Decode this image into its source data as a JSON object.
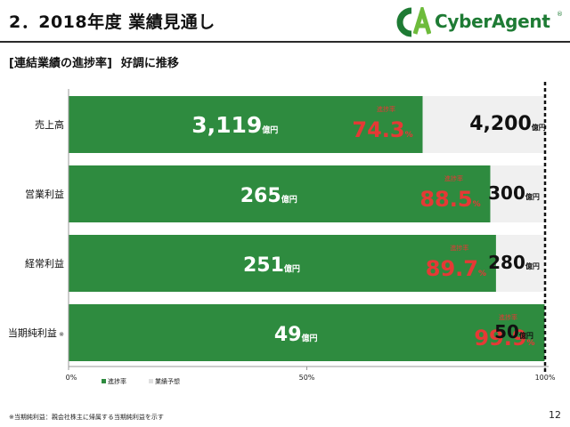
{
  "header": {
    "title": "2．2018年度 業績見通し",
    "logo_text": "CyberAgent",
    "logo_mark": "CA",
    "logo_dot": "®",
    "subtitle_bracket": "[連結業績の進捗率]",
    "subtitle_tail": "好調に推移"
  },
  "chart_data": {
    "type": "bar",
    "orientation": "horizontal",
    "stacked": true,
    "categories": [
      "売上高",
      "営業利益",
      "経常利益",
      "当期純利益"
    ],
    "category_marks": [
      "",
      "",
      "",
      "※"
    ],
    "series": [
      {
        "name": "進捗率",
        "values": [
          74.3,
          88.5,
          89.7,
          99.9
        ],
        "color": "#2e8b3f"
      },
      {
        "name": "業績予想",
        "values": [
          25.7,
          11.5,
          10.3,
          0.1
        ],
        "color": "#f0f0f0"
      }
    ],
    "actual_labels": [
      "3,119",
      "265",
      "251",
      "49"
    ],
    "forecast_labels": [
      "4,200",
      "300",
      "280",
      "50"
    ],
    "progress_labels": [
      "74.3",
      "88.5",
      "89.7",
      "99.9"
    ],
    "progress_caption": "進捗率",
    "unit": "億円",
    "percent_unit": "%",
    "xlim": [
      0,
      100
    ],
    "xticks": [
      "0%",
      "50%",
      "100%"
    ],
    "xtick_values": [
      0,
      50,
      100
    ],
    "legend_position": "bottom-left",
    "reference_line": 100,
    "progress_color": "#e53935"
  },
  "footer": {
    "footnote": "※当期純利益：親会社株主に帰属する当期純利益を示す",
    "page_number": "12"
  }
}
